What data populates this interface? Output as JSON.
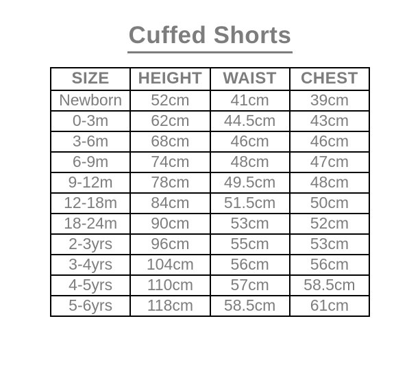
{
  "chart_data": {
    "type": "table",
    "title": "Cuffed Shorts",
    "columns": [
      "SIZE",
      "HEIGHT",
      "WAIST",
      "CHEST"
    ],
    "rows": [
      [
        "Newborn",
        "52cm",
        "41cm",
        "39cm"
      ],
      [
        "0-3m",
        "62cm",
        "44.5cm",
        "43cm"
      ],
      [
        "3-6m",
        "68cm",
        "46cm",
        "46cm"
      ],
      [
        "6-9m",
        "74cm",
        "48cm",
        "47cm"
      ],
      [
        "9-12m",
        "78cm",
        "49.5cm",
        "48cm"
      ],
      [
        "12-18m",
        "84cm",
        "51.5cm",
        "50cm"
      ],
      [
        "18-24m",
        "90cm",
        "53cm",
        "52cm"
      ],
      [
        "2-3yrs",
        "96cm",
        "55cm",
        "53cm"
      ],
      [
        "3-4yrs",
        "104cm",
        "56cm",
        "56cm"
      ],
      [
        "4-5yrs",
        "110cm",
        "57cm",
        "58.5cm"
      ],
      [
        "5-6yrs",
        "118cm",
        "58.5cm",
        "61cm"
      ]
    ]
  },
  "colors": {
    "text_gray": "#7d7d7d",
    "border": "#000000",
    "background": "#ffffff"
  }
}
